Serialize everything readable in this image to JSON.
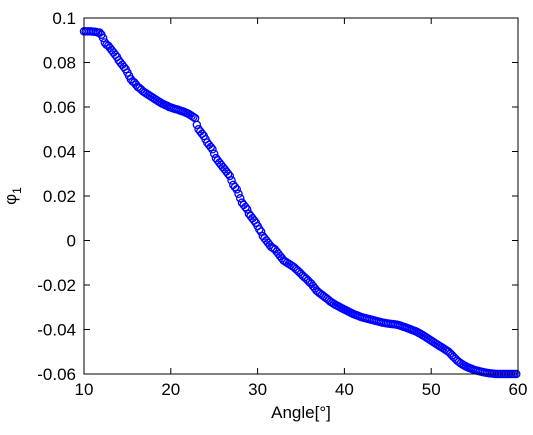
{
  "chart_data": {
    "type": "scatter",
    "xlabel": "Angle[°]",
    "ylabel_main": "φ",
    "ylabel_sub": "1",
    "xlim": [
      10,
      60
    ],
    "ylim": [
      -0.06,
      0.1
    ],
    "xticks": [
      10,
      20,
      30,
      40,
      50,
      60
    ],
    "xtick_labels": [
      "10",
      "20",
      "30",
      "40",
      "50",
      "60"
    ],
    "yticks": [
      -0.06,
      -0.04,
      -0.02,
      0,
      0.02,
      0.04,
      0.06,
      0.08,
      0.1
    ],
    "ytick_labels": [
      "-0.06",
      "-0.04",
      "-0.02",
      "0",
      "0.02",
      "0.04",
      "0.06",
      "0.08",
      "0.1"
    ],
    "grid": false,
    "marker": "open-circle",
    "marker_color": "#0000ff",
    "series": [
      {
        "points": [
          [
            10.0,
            0.094
          ],
          [
            10.2,
            0.094
          ],
          [
            10.4,
            0.094
          ],
          [
            10.6,
            0.094
          ],
          [
            10.8,
            0.094
          ],
          [
            11.0,
            0.0939
          ],
          [
            11.2,
            0.0938
          ],
          [
            11.4,
            0.0937
          ],
          [
            11.6,
            0.0935
          ],
          [
            11.8,
            0.0934
          ],
          [
            12.0,
            0.0925
          ],
          [
            12.2,
            0.091
          ],
          [
            12.4,
            0.089
          ],
          [
            12.6,
            0.088
          ],
          [
            12.8,
            0.0875
          ],
          [
            13.0,
            0.0865
          ],
          [
            13.2,
            0.0855
          ],
          [
            13.4,
            0.0845
          ],
          [
            13.6,
            0.0835
          ],
          [
            13.8,
            0.0825
          ],
          [
            14.0,
            0.081
          ],
          [
            14.2,
            0.08
          ],
          [
            14.4,
            0.079
          ],
          [
            14.6,
            0.078
          ],
          [
            14.8,
            0.077
          ],
          [
            15.0,
            0.0755
          ],
          [
            15.2,
            0.074
          ],
          [
            15.4,
            0.0725
          ],
          [
            15.6,
            0.0715
          ],
          [
            15.8,
            0.071
          ],
          [
            16.0,
            0.07
          ],
          [
            16.2,
            0.069
          ],
          [
            16.4,
            0.0685
          ],
          [
            16.6,
            0.0678
          ],
          [
            16.8,
            0.067
          ],
          [
            17.0,
            0.0665
          ],
          [
            17.2,
            0.066
          ],
          [
            17.4,
            0.0655
          ],
          [
            17.6,
            0.065
          ],
          [
            17.8,
            0.0645
          ],
          [
            18.0,
            0.064
          ],
          [
            18.2,
            0.0635
          ],
          [
            18.4,
            0.063
          ],
          [
            18.6,
            0.0625
          ],
          [
            18.8,
            0.062
          ],
          [
            19.0,
            0.0615
          ],
          [
            19.2,
            0.0612
          ],
          [
            19.4,
            0.0608
          ],
          [
            19.6,
            0.0605
          ],
          [
            19.8,
            0.06
          ],
          [
            20.0,
            0.0598
          ],
          [
            20.2,
            0.0595
          ],
          [
            20.4,
            0.0592
          ],
          [
            20.6,
            0.059
          ],
          [
            20.8,
            0.0588
          ],
          [
            21.0,
            0.0585
          ],
          [
            21.2,
            0.0582
          ],
          [
            21.4,
            0.058
          ],
          [
            21.6,
            0.0577
          ],
          [
            21.8,
            0.0573
          ],
          [
            22.0,
            0.057
          ],
          [
            22.2,
            0.0565
          ],
          [
            22.4,
            0.056
          ],
          [
            22.6,
            0.0555
          ],
          [
            22.8,
            0.055
          ],
          [
            23.0,
            0.052
          ],
          [
            23.2,
            0.05
          ],
          [
            23.4,
            0.049
          ],
          [
            23.6,
            0.048
          ],
          [
            23.8,
            0.047
          ],
          [
            24.0,
            0.0455
          ],
          [
            24.2,
            0.044
          ],
          [
            24.4,
            0.043
          ],
          [
            24.6,
            0.042
          ],
          [
            24.8,
            0.041
          ],
          [
            25.0,
            0.039
          ],
          [
            25.2,
            0.037
          ],
          [
            25.4,
            0.036
          ],
          [
            25.6,
            0.035
          ],
          [
            25.8,
            0.034
          ],
          [
            26.0,
            0.033
          ],
          [
            26.2,
            0.032
          ],
          [
            26.4,
            0.031
          ],
          [
            26.6,
            0.03
          ],
          [
            26.8,
            0.029
          ],
          [
            27.0,
            0.027
          ],
          [
            27.2,
            0.025
          ],
          [
            27.4,
            0.024
          ],
          [
            27.6,
            0.023
          ],
          [
            27.8,
            0.021
          ],
          [
            28.0,
            0.019
          ],
          [
            28.2,
            0.017
          ],
          [
            28.4,
            0.016
          ],
          [
            28.6,
            0.015
          ],
          [
            28.8,
            0.014
          ],
          [
            29.0,
            0.012
          ],
          [
            29.2,
            0.011
          ],
          [
            29.4,
            0.01
          ],
          [
            29.6,
            0.009
          ],
          [
            29.8,
            0.008
          ],
          [
            30.0,
            0.0065
          ],
          [
            30.2,
            0.005
          ],
          [
            30.4,
            0.004
          ],
          [
            30.6,
            0.002
          ],
          [
            30.8,
            0.001
          ],
          [
            31.0,
            0.0
          ],
          [
            31.2,
            -0.001
          ],
          [
            31.4,
            -0.002
          ],
          [
            31.6,
            -0.003
          ],
          [
            31.8,
            -0.0035
          ],
          [
            32.0,
            -0.004
          ],
          [
            32.2,
            -0.005
          ],
          [
            32.4,
            -0.006
          ],
          [
            32.6,
            -0.007
          ],
          [
            32.8,
            -0.008
          ],
          [
            33.0,
            -0.009
          ],
          [
            33.2,
            -0.0095
          ],
          [
            33.4,
            -0.01
          ],
          [
            33.6,
            -0.0105
          ],
          [
            33.8,
            -0.011
          ],
          [
            34.0,
            -0.0115
          ],
          [
            34.2,
            -0.012
          ],
          [
            34.4,
            -0.0128
          ],
          [
            34.6,
            -0.0135
          ],
          [
            34.8,
            -0.0142
          ],
          [
            35.0,
            -0.015
          ],
          [
            35.2,
            -0.0158
          ],
          [
            35.4,
            -0.0165
          ],
          [
            35.6,
            -0.0172
          ],
          [
            35.8,
            -0.018
          ],
          [
            36.0,
            -0.0188
          ],
          [
            36.2,
            -0.0195
          ],
          [
            36.4,
            -0.0205
          ],
          [
            36.6,
            -0.0215
          ],
          [
            36.8,
            -0.0225
          ],
          [
            37.0,
            -0.0232
          ],
          [
            37.2,
            -0.0238
          ],
          [
            37.4,
            -0.0244
          ],
          [
            37.6,
            -0.025
          ],
          [
            37.8,
            -0.0256
          ],
          [
            38.0,
            -0.0262
          ],
          [
            38.2,
            -0.0268
          ],
          [
            38.4,
            -0.0275
          ],
          [
            38.6,
            -0.028
          ],
          [
            38.8,
            -0.0285
          ],
          [
            39.0,
            -0.029
          ],
          [
            39.2,
            -0.0294
          ],
          [
            39.4,
            -0.0298
          ],
          [
            39.6,
            -0.0302
          ],
          [
            39.8,
            -0.0306
          ],
          [
            40.0,
            -0.031
          ],
          [
            40.2,
            -0.0314
          ],
          [
            40.4,
            -0.0318
          ],
          [
            40.6,
            -0.0322
          ],
          [
            40.8,
            -0.0326
          ],
          [
            41.0,
            -0.033
          ],
          [
            41.2,
            -0.0333
          ],
          [
            41.4,
            -0.0336
          ],
          [
            41.6,
            -0.0339
          ],
          [
            41.8,
            -0.0342
          ],
          [
            42.0,
            -0.0345
          ],
          [
            42.2,
            -0.0347
          ],
          [
            42.4,
            -0.0349
          ],
          [
            42.6,
            -0.0351
          ],
          [
            42.8,
            -0.0353
          ],
          [
            43.0,
            -0.0355
          ],
          [
            43.2,
            -0.0357
          ],
          [
            43.4,
            -0.0359
          ],
          [
            43.6,
            -0.0361
          ],
          [
            43.8,
            -0.0363
          ],
          [
            44.0,
            -0.0365
          ],
          [
            44.2,
            -0.0367
          ],
          [
            44.4,
            -0.0369
          ],
          [
            44.6,
            -0.037
          ],
          [
            44.8,
            -0.0372
          ],
          [
            45.0,
            -0.0373
          ],
          [
            45.2,
            -0.0374
          ],
          [
            45.4,
            -0.0375
          ],
          [
            45.6,
            -0.0376
          ],
          [
            45.8,
            -0.0377
          ],
          [
            46.0,
            -0.0378
          ],
          [
            46.2,
            -0.038
          ],
          [
            46.4,
            -0.0382
          ],
          [
            46.6,
            -0.0385
          ],
          [
            46.8,
            -0.0388
          ],
          [
            47.0,
            -0.039
          ],
          [
            47.2,
            -0.0393
          ],
          [
            47.4,
            -0.0396
          ],
          [
            47.6,
            -0.0399
          ],
          [
            47.8,
            -0.0402
          ],
          [
            48.0,
            -0.0405
          ],
          [
            48.2,
            -0.0408
          ],
          [
            48.4,
            -0.0412
          ],
          [
            48.6,
            -0.0416
          ],
          [
            48.8,
            -0.042
          ],
          [
            49.0,
            -0.0425
          ],
          [
            49.2,
            -0.043
          ],
          [
            49.4,
            -0.0435
          ],
          [
            49.6,
            -0.044
          ],
          [
            49.8,
            -0.0445
          ],
          [
            50.0,
            -0.045
          ],
          [
            50.2,
            -0.0455
          ],
          [
            50.4,
            -0.046
          ],
          [
            50.6,
            -0.0465
          ],
          [
            50.8,
            -0.047
          ],
          [
            51.0,
            -0.0475
          ],
          [
            51.2,
            -0.048
          ],
          [
            51.4,
            -0.0485
          ],
          [
            51.6,
            -0.049
          ],
          [
            51.8,
            -0.0495
          ],
          [
            52.0,
            -0.05
          ],
          [
            52.2,
            -0.0508
          ],
          [
            52.4,
            -0.0516
          ],
          [
            52.6,
            -0.0524
          ],
          [
            52.8,
            -0.0532
          ],
          [
            53.0,
            -0.054
          ],
          [
            53.2,
            -0.0546
          ],
          [
            53.4,
            -0.0552
          ],
          [
            53.6,
            -0.0557
          ],
          [
            53.8,
            -0.0562
          ],
          [
            54.0,
            -0.0566
          ],
          [
            54.2,
            -0.057
          ],
          [
            54.4,
            -0.0573
          ],
          [
            54.6,
            -0.0576
          ],
          [
            54.8,
            -0.0579
          ],
          [
            55.0,
            -0.0582
          ],
          [
            55.2,
            -0.0584
          ],
          [
            55.4,
            -0.0586
          ],
          [
            55.6,
            -0.0588
          ],
          [
            55.8,
            -0.059
          ],
          [
            56.0,
            -0.0592
          ],
          [
            56.2,
            -0.0593
          ],
          [
            56.4,
            -0.0595
          ],
          [
            56.6,
            -0.0596
          ],
          [
            56.8,
            -0.0597
          ],
          [
            57.0,
            -0.0598
          ],
          [
            57.2,
            -0.0599
          ],
          [
            57.4,
            -0.06
          ],
          [
            57.6,
            -0.06
          ],
          [
            57.8,
            -0.06
          ],
          [
            58.0,
            -0.06
          ],
          [
            58.2,
            -0.06
          ],
          [
            58.4,
            -0.06
          ],
          [
            58.6,
            -0.06
          ],
          [
            58.8,
            -0.06
          ],
          [
            59.0,
            -0.06
          ],
          [
            59.2,
            -0.06
          ],
          [
            59.4,
            -0.06
          ],
          [
            59.6,
            -0.06
          ],
          [
            59.8,
            -0.06
          ]
        ]
      }
    ]
  }
}
